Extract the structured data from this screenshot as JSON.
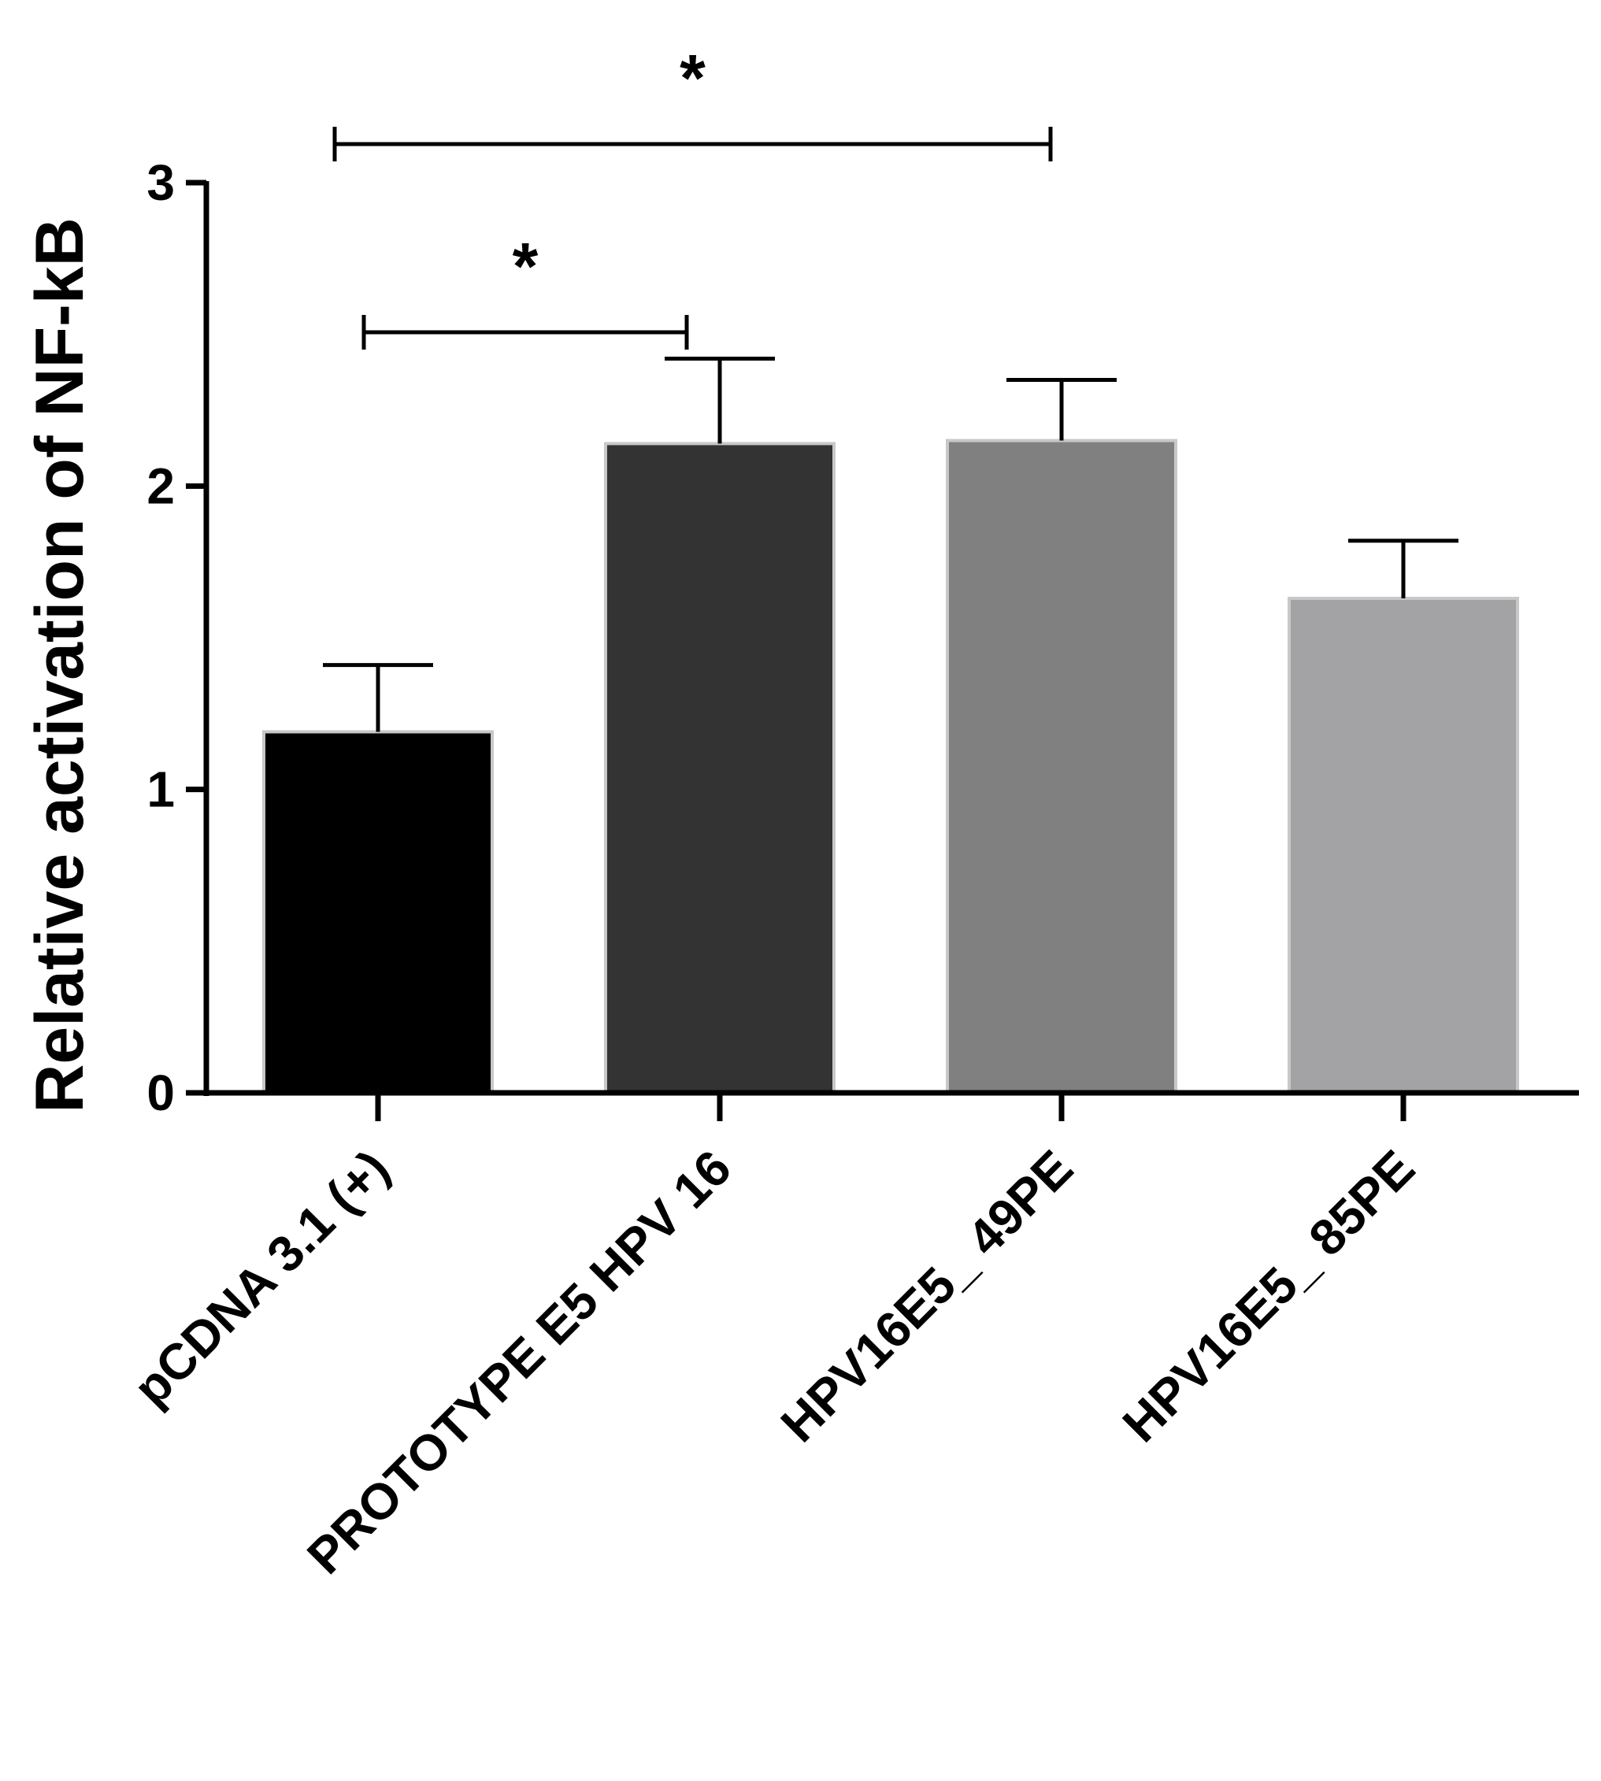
{
  "chart_data": {
    "type": "bar",
    "title": "",
    "xlabel": "",
    "ylabel": "Relative activation of NF-kB",
    "ylim": [
      0,
      3
    ],
    "yticks": [
      0,
      1,
      2,
      3
    ],
    "grid": false,
    "categories": [
      "pCDNA 3.1 (+)",
      "PROTOTYPE E5 HPV 16",
      "HPV16E5_ 49PE",
      "HPV16E5_ 85PE"
    ],
    "values": [
      1.19,
      2.14,
      2.15,
      1.63
    ],
    "error": [
      0.22,
      0.28,
      0.2,
      0.19
    ],
    "colors": [
      "#000000",
      "#333333",
      "#808080",
      "#a3a3a6"
    ],
    "significance": [
      {
        "from": 0,
        "to": 1,
        "label": "*"
      },
      {
        "from": 0,
        "to": 2,
        "label": "*"
      }
    ]
  }
}
